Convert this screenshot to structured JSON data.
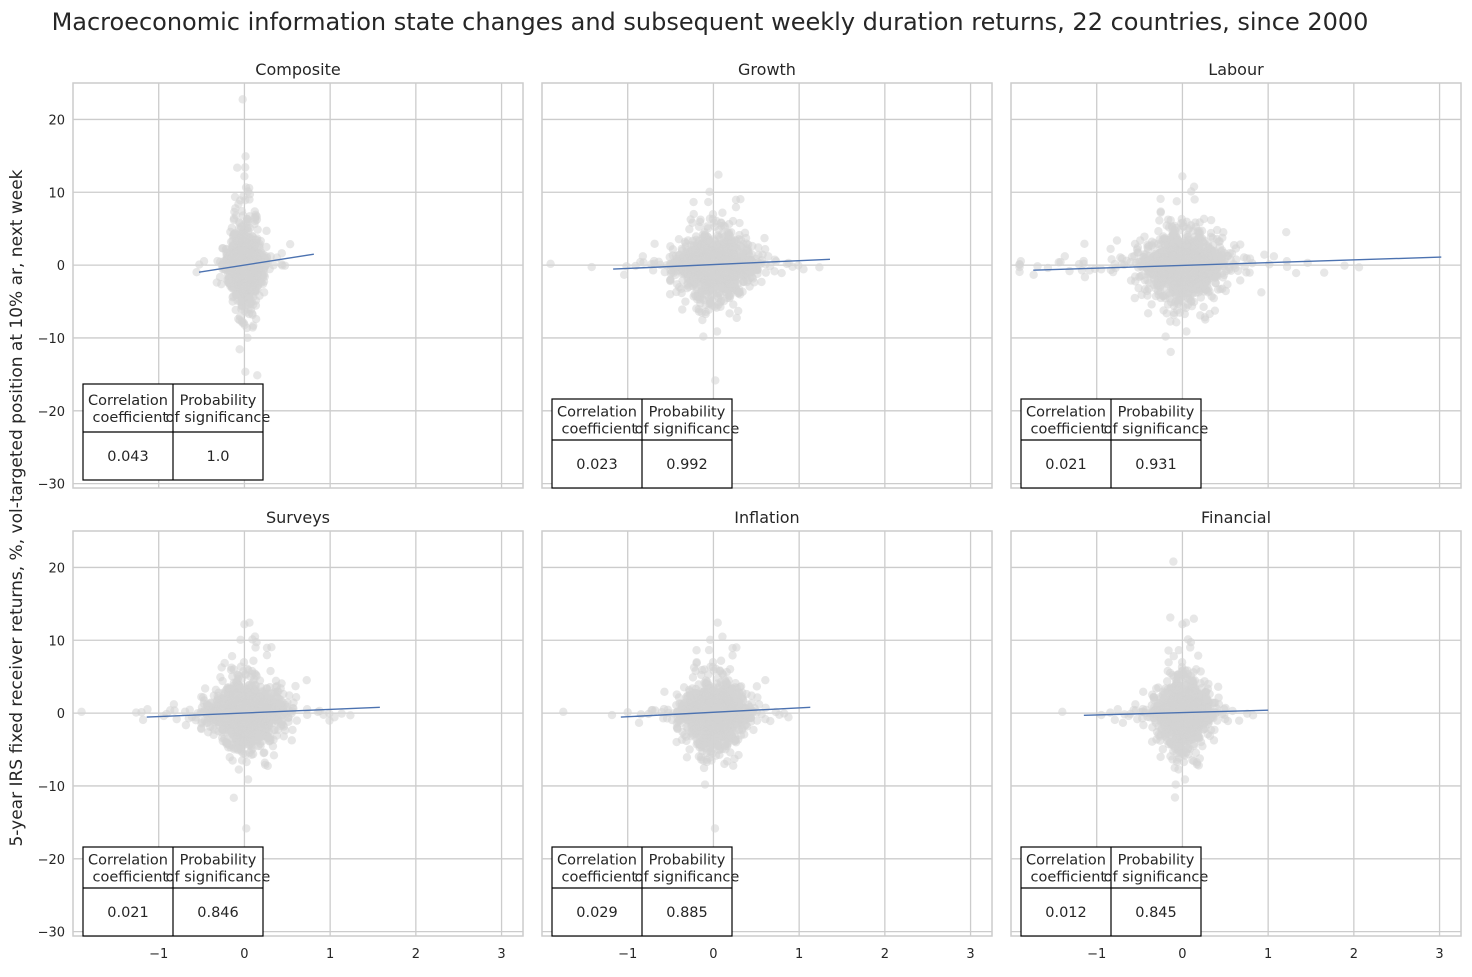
{
  "title": "Macroeconomic information state changes and subsequent weekly duration returns, 22 countries, since 2000",
  "ylabel": "5-year IRS fixed receiver returns, %, vol-targeted position at 10% ar, next week",
  "colors": {
    "points": "#d3d3d3",
    "regression": "#4c72b0",
    "grid": "#cccccc",
    "frame": "#cccccc"
  },
  "table_headers": [
    "Correlation\n coefficient",
    "Probability\nof significance"
  ],
  "chart_data": [
    {
      "type": "scatter",
      "title": "Composite",
      "xlim": [
        -2,
        3.25
      ],
      "ylim": [
        -30.6,
        25
      ],
      "xticks": [
        -1,
        0,
        1,
        2,
        3
      ],
      "yticks": [
        20,
        10,
        0,
        -10,
        -20,
        -30
      ],
      "grid": true,
      "regression": {
        "x": [
          -0.53,
          0.81
        ],
        "y": [
          -0.97,
          1.5
        ]
      },
      "table": {
        "correlation": "0.043",
        "probability": "1.0"
      }
    },
    {
      "type": "scatter",
      "title": "Growth",
      "xlim": [
        -2,
        3.25
      ],
      "ylim": [
        -30.6,
        25
      ],
      "xticks": [
        -1,
        0,
        1,
        2,
        3
      ],
      "yticks": [
        20,
        10,
        0,
        -10,
        -20,
        -30
      ],
      "grid": true,
      "regression": {
        "x": [
          -1.17,
          1.36
        ],
        "y": [
          -0.55,
          0.8
        ]
      },
      "table": {
        "correlation": "0.023",
        "probability": "0.992"
      }
    },
    {
      "type": "scatter",
      "title": "Labour",
      "xlim": [
        -2,
        3.25
      ],
      "ylim": [
        -30.6,
        25
      ],
      "xticks": [
        -1,
        0,
        1,
        2,
        3
      ],
      "yticks": [
        20,
        10,
        0,
        -10,
        -20,
        -30
      ],
      "grid": true,
      "regression": {
        "x": [
          -1.74,
          3.02
        ],
        "y": [
          -0.7,
          1.1
        ]
      },
      "table": {
        "correlation": "0.021",
        "probability": "0.931"
      }
    },
    {
      "type": "scatter",
      "title": "Surveys",
      "xlim": [
        -2,
        3.25
      ],
      "ylim": [
        -30.6,
        25
      ],
      "xticks": [
        -1,
        0,
        1,
        2,
        3
      ],
      "yticks": [
        20,
        10,
        0,
        -10,
        -20,
        -30
      ],
      "grid": true,
      "regression": {
        "x": [
          -1.14,
          1.58
        ],
        "y": [
          -0.55,
          0.8
        ]
      },
      "table": {
        "correlation": "0.021",
        "probability": "0.846"
      }
    },
    {
      "type": "scatter",
      "title": "Inflation",
      "xlim": [
        -2,
        3.25
      ],
      "ylim": [
        -30.6,
        25
      ],
      "xticks": [
        -1,
        0,
        1,
        2,
        3
      ],
      "yticks": [
        20,
        10,
        0,
        -10,
        -20,
        -30
      ],
      "grid": true,
      "regression": {
        "x": [
          -1.08,
          1.13
        ],
        "y": [
          -0.55,
          0.8
        ]
      },
      "table": {
        "correlation": "0.029",
        "probability": "0.885"
      }
    },
    {
      "type": "scatter",
      "title": "Financial",
      "xlim": [
        -2,
        3.25
      ],
      "ylim": [
        -30.6,
        25
      ],
      "xticks": [
        -1,
        0,
        1,
        2,
        3
      ],
      "yticks": [
        20,
        10,
        0,
        -10,
        -20,
        -30
      ],
      "grid": true,
      "regression": {
        "x": [
          -1.15,
          1.0
        ],
        "y": [
          -0.3,
          0.4
        ]
      },
      "table": {
        "correlation": "0.012",
        "probability": "0.845"
      }
    }
  ]
}
